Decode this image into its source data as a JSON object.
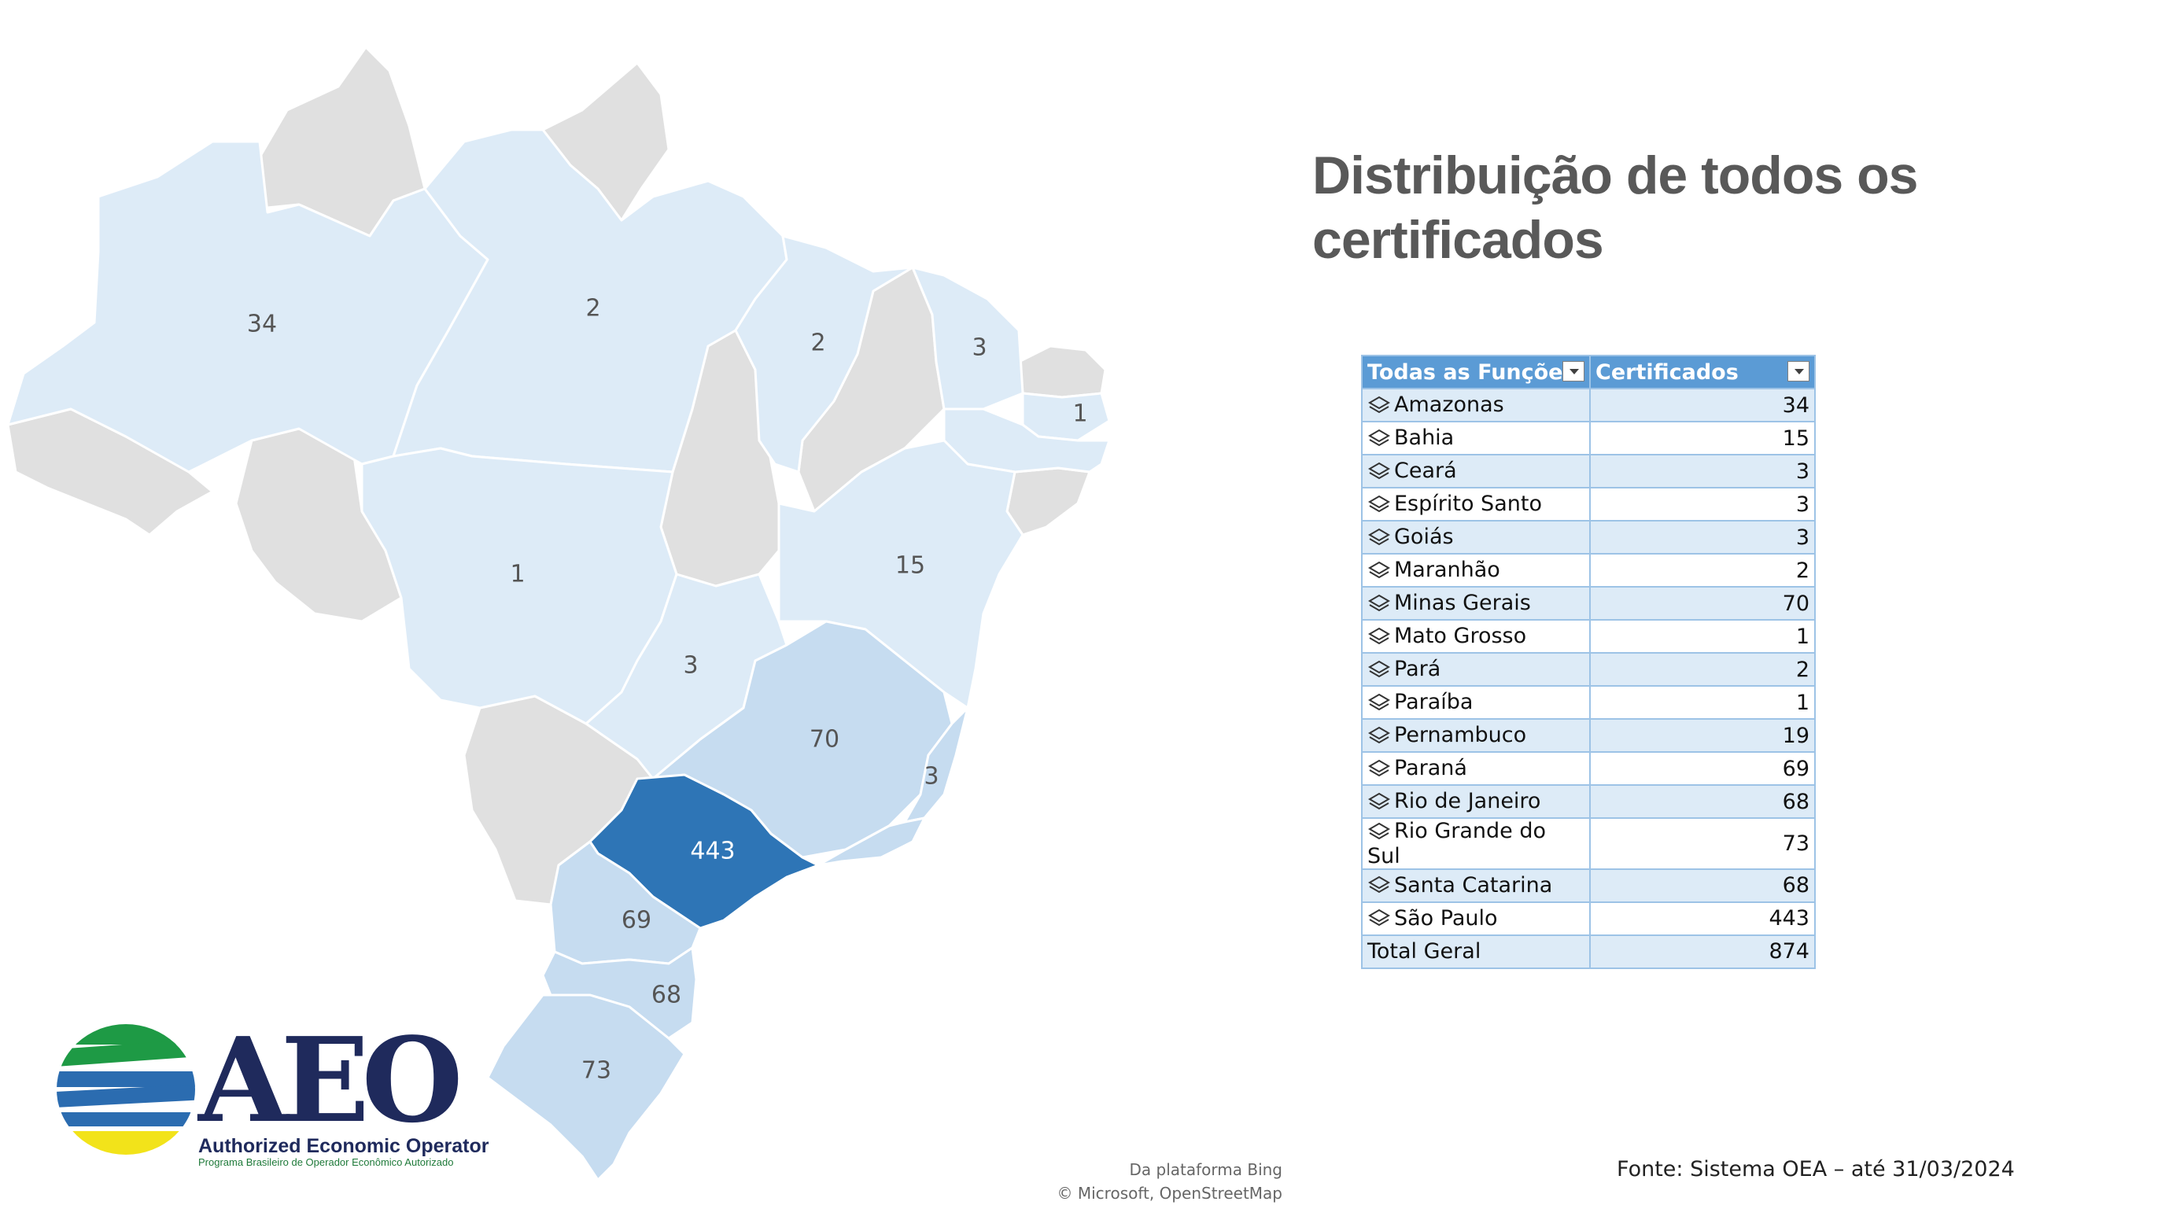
{
  "title": "Distribuição de todos os certificados",
  "map": {
    "values": {
      "amazonas": "34",
      "para": "2",
      "maranhao": "2",
      "ceara": "3",
      "paraiba": "1",
      "bahia": "15",
      "mato_grosso": "1",
      "goias": "3",
      "minas_gerais": "70",
      "espirito_santo": "3",
      "sao_paulo": "443",
      "parana": "69",
      "santa_catarina": "68",
      "rio_grande_do_sul": "73"
    },
    "colors": {
      "light": "#ddebf7",
      "medium": "#c6dcf0",
      "dark": "#2e75b6",
      "no_data": "#e0e0e0",
      "border": "#ffffff"
    }
  },
  "pivot": {
    "headers": [
      "Todas as Funções",
      "Certificados"
    ],
    "rows": [
      {
        "name": "Amazonas",
        "value": "34"
      },
      {
        "name": "Bahia",
        "value": "15"
      },
      {
        "name": "Ceará",
        "value": "3"
      },
      {
        "name": "Espírito Santo",
        "value": "3"
      },
      {
        "name": "Goiás",
        "value": "3"
      },
      {
        "name": "Maranhão",
        "value": "2"
      },
      {
        "name": "Minas Gerais",
        "value": "70"
      },
      {
        "name": "Mato Grosso",
        "value": "1"
      },
      {
        "name": "Pará",
        "value": "2"
      },
      {
        "name": "Paraíba",
        "value": "1"
      },
      {
        "name": "Pernambuco",
        "value": "19"
      },
      {
        "name": "Paraná",
        "value": "69"
      },
      {
        "name": "Rio de Janeiro",
        "value": "68"
      },
      {
        "name": "Rio Grande do Sul",
        "value": "73"
      },
      {
        "name": "Santa Catarina",
        "value": "68"
      },
      {
        "name": "São Paulo",
        "value": "443"
      }
    ],
    "total_label": "Total Geral",
    "total_value": "874"
  },
  "credits": {
    "line1": "Da plataforma Bing",
    "line2": "© Microsoft, OpenStreetMap"
  },
  "source": "Fonte: Sistema OEA – até 31/03/2024",
  "logo": {
    "word": "AEO",
    "subtitle": "Authorized Economic Operator",
    "tagline": "Programa Brasileiro de Operador Econômico Autorizado"
  }
}
